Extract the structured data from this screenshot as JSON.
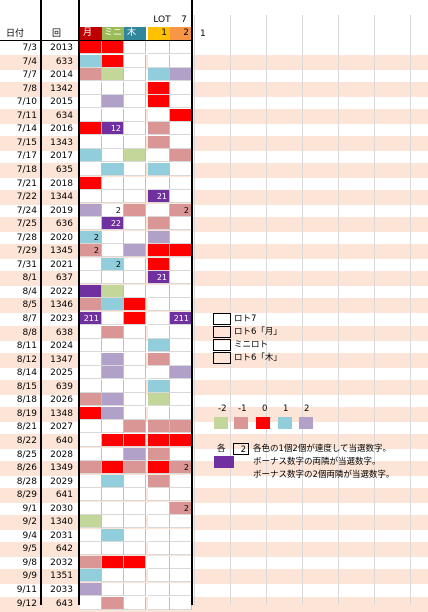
{
  "header": {
    "row1": {
      "lot": "LOT",
      "seven": "7"
    },
    "row2": {
      "date": "日付",
      "kai": "回",
      "tsuki": "月",
      "mini": "ミニ",
      "moku": "木",
      "lot_val": "1",
      "seven_val": "2",
      "extra": "1"
    }
  },
  "colors": {
    "red": "#ff0000",
    "pink": "#da9694",
    "lightpink": "#f2dcdb",
    "green": "#c4d79b",
    "blue": "#92cddc",
    "lavender": "#b1a0c7",
    "purple": "#7030a0",
    "band": "#fce4d6",
    "hdr_tsuki": "#c00000",
    "hdr_mini": "#9bbb59",
    "hdr_moku": "#31869b",
    "hdr_lot": "#ffc000",
    "hdr_seven": "#f79646"
  },
  "rows": [
    {
      "date": "7/3",
      "num": "2013",
      "cells": [
        "red",
        "red",
        "",
        "",
        ""
      ],
      "vals": [
        "",
        "",
        "",
        "",
        ""
      ]
    },
    {
      "date": "7/4",
      "num": "633",
      "cells": [
        "blue",
        "red",
        "",
        "",
        ""
      ],
      "vals": [
        "",
        "",
        "",
        "",
        ""
      ]
    },
    {
      "date": "7/7",
      "num": "2014",
      "cells": [
        "pink",
        "green",
        "",
        "blue",
        "lavender"
      ],
      "vals": [
        "",
        "",
        "",
        "",
        ""
      ]
    },
    {
      "date": "7/8",
      "num": "1342",
      "cells": [
        "",
        "",
        "",
        "red",
        ""
      ],
      "vals": [
        "",
        "",
        "",
        "",
        ""
      ]
    },
    {
      "date": "7/10",
      "num": "2015",
      "cells": [
        "",
        "lavender",
        "",
        "red",
        ""
      ],
      "vals": [
        "",
        "",
        "",
        "",
        ""
      ]
    },
    {
      "date": "7/11",
      "num": "634",
      "cells": [
        "",
        "",
        "",
        "",
        "red"
      ],
      "vals": [
        "",
        "",
        "",
        "",
        ""
      ]
    },
    {
      "date": "7/14",
      "num": "2016",
      "cells": [
        "red",
        "purple",
        "",
        "pink",
        ""
      ],
      "vals": [
        "",
        "12",
        "",
        "",
        ""
      ]
    },
    {
      "date": "7/15",
      "num": "1343",
      "cells": [
        "",
        "",
        "",
        "pink",
        ""
      ],
      "vals": [
        "",
        "",
        "",
        "",
        ""
      ]
    },
    {
      "date": "7/17",
      "num": "2017",
      "cells": [
        "blue",
        "",
        "green",
        "",
        "pink"
      ],
      "vals": [
        "",
        "",
        "",
        "",
        ""
      ]
    },
    {
      "date": "7/18",
      "num": "635",
      "cells": [
        "",
        "blue",
        "",
        "blue",
        ""
      ],
      "vals": [
        "",
        "",
        "",
        "",
        ""
      ]
    },
    {
      "date": "7/21",
      "num": "2018",
      "cells": [
        "red",
        "",
        "",
        "",
        ""
      ],
      "vals": [
        "",
        "",
        "",
        "",
        ""
      ]
    },
    {
      "date": "7/22",
      "num": "1344",
      "cells": [
        "",
        "",
        "",
        "purple",
        ""
      ],
      "vals": [
        "",
        "",
        "",
        "21",
        ""
      ]
    },
    {
      "date": "7/24",
      "num": "2019",
      "cells": [
        "lavender",
        "",
        "pink",
        "",
        "pink"
      ],
      "vals": [
        "",
        "2",
        "",
        "",
        "2"
      ]
    },
    {
      "date": "7/25",
      "num": "636",
      "cells": [
        "",
        "purple",
        "",
        "pink",
        ""
      ],
      "vals": [
        "",
        "22",
        "",
        "",
        ""
      ]
    },
    {
      "date": "7/28",
      "num": "2020",
      "cells": [
        "blue",
        "",
        "",
        "lavender",
        ""
      ],
      "vals": [
        "2",
        "",
        "",
        "",
        ""
      ]
    },
    {
      "date": "7/29",
      "num": "1345",
      "cells": [
        "pink",
        "",
        "lavender",
        "red",
        "red"
      ],
      "vals": [
        "2",
        "",
        "",
        "",
        ""
      ]
    },
    {
      "date": "7/31",
      "num": "2021",
      "cells": [
        "",
        "blue",
        "",
        "red",
        ""
      ],
      "vals": [
        "",
        "2",
        "",
        "",
        ""
      ]
    },
    {
      "date": "8/1",
      "num": "637",
      "cells": [
        "",
        "",
        "",
        "purple",
        ""
      ],
      "vals": [
        "",
        "",
        "",
        "21",
        ""
      ]
    },
    {
      "date": "8/4",
      "num": "2022",
      "cells": [
        "purple",
        "green",
        "",
        "",
        ""
      ],
      "vals": [
        "",
        "",
        "",
        "",
        ""
      ]
    },
    {
      "date": "8/5",
      "num": "1346",
      "cells": [
        "pink",
        "blue",
        "red",
        "",
        ""
      ],
      "vals": [
        "",
        "",
        "",
        "",
        ""
      ]
    },
    {
      "date": "8/7",
      "num": "2023",
      "cells": [
        "purple",
        "",
        "red",
        "",
        "purple"
      ],
      "vals": [
        "211",
        "",
        "",
        "",
        "211"
      ]
    },
    {
      "date": "8/8",
      "num": "638",
      "cells": [
        "",
        "pink",
        "",
        "",
        ""
      ],
      "vals": [
        "",
        "",
        "",
        "",
        ""
      ]
    },
    {
      "date": "8/11",
      "num": "2024",
      "cells": [
        "",
        "",
        "",
        "blue",
        ""
      ],
      "vals": [
        "",
        "",
        "",
        "",
        ""
      ]
    },
    {
      "date": "8/12",
      "num": "1347",
      "cells": [
        "",
        "lavender",
        "",
        "pink",
        ""
      ],
      "vals": [
        "",
        "",
        "",
        "",
        ""
      ]
    },
    {
      "date": "8/14",
      "num": "2025",
      "cells": [
        "",
        "lavender",
        "",
        "",
        "lavender"
      ],
      "vals": [
        "",
        "",
        "",
        "",
        ""
      ]
    },
    {
      "date": "8/15",
      "num": "639",
      "cells": [
        "",
        "",
        "",
        "blue",
        ""
      ],
      "vals": [
        "",
        "",
        "",
        "",
        ""
      ]
    },
    {
      "date": "8/18",
      "num": "2026",
      "cells": [
        "pink",
        "lavender",
        "",
        "green",
        ""
      ],
      "vals": [
        "",
        "",
        "",
        "",
        ""
      ]
    },
    {
      "date": "8/19",
      "num": "1348",
      "cells": [
        "red",
        "lavender",
        "",
        "",
        ""
      ],
      "vals": [
        "",
        "",
        "",
        "",
        ""
      ]
    },
    {
      "date": "8/21",
      "num": "2027",
      "cells": [
        "",
        "",
        "pink",
        "pink",
        "pink"
      ],
      "vals": [
        "",
        "",
        "",
        "",
        ""
      ]
    },
    {
      "date": "8/22",
      "num": "640",
      "cells": [
        "",
        "red",
        "red",
        "red",
        "red"
      ],
      "vals": [
        "",
        "",
        "",
        "",
        ""
      ]
    },
    {
      "date": "8/25",
      "num": "2028",
      "cells": [
        "",
        "",
        "lavender",
        "pink",
        ""
      ],
      "vals": [
        "",
        "",
        "",
        "",
        ""
      ]
    },
    {
      "date": "8/26",
      "num": "1349",
      "cells": [
        "pink",
        "red",
        "pink",
        "red",
        "pink"
      ],
      "vals": [
        "",
        "",
        "",
        "",
        "2"
      ]
    },
    {
      "date": "8/28",
      "num": "2029",
      "cells": [
        "",
        "blue",
        "",
        "pink",
        ""
      ],
      "vals": [
        "",
        "",
        "",
        "",
        ""
      ]
    },
    {
      "date": "8/29",
      "num": "641",
      "cells": [
        "",
        "",
        "",
        "",
        ""
      ],
      "vals": [
        "",
        "",
        "",
        "",
        ""
      ]
    },
    {
      "date": "9/1",
      "num": "2030",
      "cells": [
        "",
        "",
        "",
        "",
        "pink"
      ],
      "vals": [
        "",
        "",
        "",
        "",
        "2"
      ]
    },
    {
      "date": "9/2",
      "num": "1340",
      "cells": [
        "green",
        "",
        "",
        "",
        ""
      ],
      "vals": [
        "",
        "",
        "",
        "",
        ""
      ]
    },
    {
      "date": "9/4",
      "num": "2031",
      "cells": [
        "",
        "blue",
        "",
        "",
        ""
      ],
      "vals": [
        "",
        "",
        "",
        "",
        ""
      ]
    },
    {
      "date": "9/5",
      "num": "642",
      "cells": [
        "",
        "",
        "",
        "",
        ""
      ],
      "vals": [
        "",
        "",
        "",
        "",
        ""
      ]
    },
    {
      "date": "9/8",
      "num": "2032",
      "cells": [
        "pink",
        "red",
        "red",
        "",
        ""
      ],
      "vals": [
        "",
        "",
        "",
        "",
        ""
      ]
    },
    {
      "date": "9/9",
      "num": "1351",
      "cells": [
        "blue",
        "",
        "",
        "",
        ""
      ],
      "vals": [
        "",
        "",
        "",
        "",
        ""
      ]
    },
    {
      "date": "9/11",
      "num": "2033",
      "cells": [
        "lavender",
        "",
        "",
        "",
        ""
      ],
      "vals": [
        "",
        "",
        "",
        "",
        ""
      ]
    },
    {
      "date": "9/12",
      "num": "643",
      "cells": [
        "",
        "pink",
        "",
        "",
        ""
      ],
      "vals": [
        "",
        "",
        "",
        "",
        ""
      ]
    }
  ],
  "legend": {
    "items": [
      {
        "label": "ロト7"
      },
      {
        "label": "ロト6「月」"
      },
      {
        "label": "ミニロト"
      },
      {
        "label": "ロト6「木」"
      }
    ]
  },
  "scale": {
    "labels": [
      "-2",
      "-1",
      "0",
      "1",
      "2"
    ],
    "colors": [
      "green",
      "pink",
      "red",
      "blue",
      "lavender"
    ]
  },
  "notes": {
    "prefix": "各",
    "boxed_value": "2",
    "line1": "各色の1個2個が連度して当選数字。",
    "line2": "ボーナス数字の両隣が当選数字。",
    "line3": "ボーナス数字の2個両隣が当選数字。"
  }
}
